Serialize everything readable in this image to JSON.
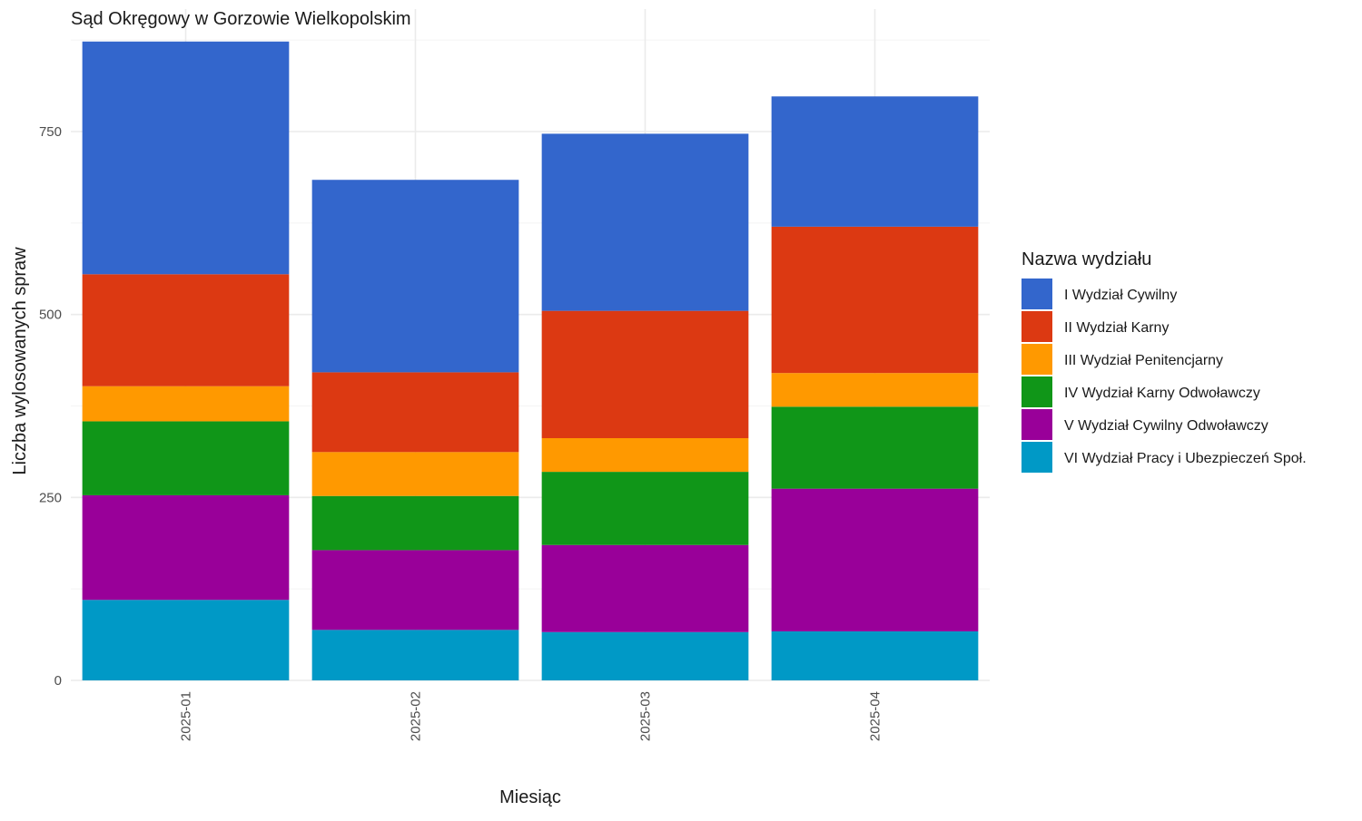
{
  "chart_data": {
    "type": "bar",
    "stacked": true,
    "title": "Sąd Okręgowy w Gorzowie Wielkopolskim",
    "xlabel": "Miesiąc",
    "ylabel": "Liczba wylosowanych spraw",
    "categories": [
      "2025-01",
      "2025-02",
      "2025-03",
      "2025-04"
    ],
    "ylim": [
      0,
      910
    ],
    "yticks": [
      0,
      250,
      500,
      750
    ],
    "grid": true,
    "legend": {
      "title": "Nazwa wydziału",
      "position": "right"
    },
    "series": [
      {
        "name": "I Wydział Cywilny",
        "color": "#3366CC",
        "values": [
          318,
          263,
          242,
          178
        ]
      },
      {
        "name": "II Wydział Karny",
        "color": "#DC3912",
        "values": [
          153,
          109,
          174,
          200
        ]
      },
      {
        "name": "III Wydział Penitencjarny",
        "color": "#FF9900",
        "values": [
          48,
          60,
          46,
          46
        ]
      },
      {
        "name": "IV Wydział Karny Odwoławczy",
        "color": "#109618",
        "values": [
          101,
          74,
          100,
          112
        ]
      },
      {
        "name": "V Wydział Cywilny Odwoławczy",
        "color": "#990099",
        "values": [
          143,
          109,
          119,
          195
        ]
      },
      {
        "name": "VI Wydział Pracy i Ubezpieczeń Społ.",
        "color": "#0099C6",
        "values": [
          110,
          69,
          66,
          67
        ]
      }
    ]
  }
}
